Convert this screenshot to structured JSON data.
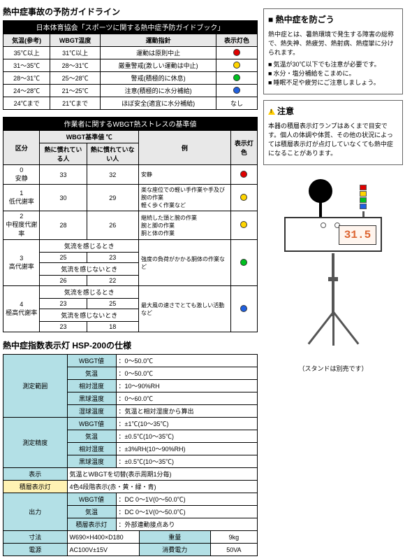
{
  "titles": {
    "main": "熱中症事故の予防ガイドライン",
    "sub1": "日本体育協会「スポーツに関する熱中症予防ガイドブック」",
    "sub2": "作業者に関するWBGT熱ストレスの基準値",
    "spec": "熱中症指数表示灯 HSP-200の仕様"
  },
  "t1": {
    "h": [
      "気温(参考)",
      "WBGT温度",
      "運動指針",
      "表示灯色"
    ],
    "rows": [
      {
        "c": [
          "35℃以上",
          "31℃以上",
          "運動は原則中止"
        ],
        "led": "#e00000"
      },
      {
        "c": [
          "31～35℃",
          "28～31℃",
          "厳重警戒(激しい運動は中止)"
        ],
        "led": "#ffd500"
      },
      {
        "c": [
          "28～31℃",
          "25～28℃",
          "警戒(積極的に休息)"
        ],
        "led": "#00c020"
      },
      {
        "c": [
          "24～28℃",
          "21～25℃",
          "注意(積極的に水分補給)"
        ],
        "led": "#2060e0"
      },
      {
        "c": [
          "24℃まで",
          "21℃まで",
          "ほぼ安全(適宜に水分補給)"
        ],
        "led": null,
        "ledtxt": "なし"
      }
    ]
  },
  "t2": {
    "h": {
      "kubun": "区分",
      "wbgt": "WBGT基準値 ℃",
      "a": "熱に慣れている人",
      "b": "熱に慣れていない人",
      "ex": "例",
      "led": "表示灯色"
    },
    "rows": [
      {
        "k": [
          "0",
          "安静"
        ],
        "a": "33",
        "b": "32",
        "ex": "安静",
        "led": "#e00000"
      },
      {
        "k": [
          "1",
          "低代謝率"
        ],
        "a": "30",
        "b": "29",
        "ex": "楽な座位での軽い手作業や手及び腕の作業\n軽く歩く作業など",
        "led": "#ffd500"
      },
      {
        "k": [
          "2",
          "中程度代謝率"
        ],
        "a": "28",
        "b": "26",
        "ex": "継続した頭と腕の作業\n腕と脚の作業\n胴と体の作業",
        "led": "#ffd500"
      },
      {
        "k": [
          "3",
          "高代謝率"
        ],
        "sub": [
          {
            "l": "気流を感じるとき",
            "a": "25",
            "b": "23"
          },
          {
            "l": "気流を感じないとき",
            "a": "26",
            "b": "22"
          }
        ],
        "ex": "強度の負荷がかかる胴体の作業など",
        "led": "#00c020"
      },
      {
        "k": [
          "4",
          "極高代謝率"
        ],
        "sub": [
          {
            "l": "気流を感じるとき",
            "a": "23",
            "b": "25"
          },
          {
            "l": "気流を感じないとき",
            "a": "23",
            "b": "18"
          }
        ],
        "ex": "最大風の速さでとても激しい活動など",
        "led": "#2060e0"
      }
    ]
  },
  "spec": {
    "groups": [
      {
        "h": "測定範囲",
        "rows": [
          [
            "WBGT値",
            "：0～50.0℃"
          ],
          [
            "気温",
            "：0～50.0℃"
          ],
          [
            "相対湿度",
            "：10～90%RH"
          ],
          [
            "黒球温度",
            "：0～60.0℃"
          ],
          [
            "湿球温度",
            "：気温と相対湿度から算出"
          ]
        ]
      },
      {
        "h": "測定精度",
        "rows": [
          [
            "WBGT値",
            "：±1℃(10～35℃)"
          ],
          [
            "気温",
            "：±0.5℃(10～35℃)"
          ],
          [
            "相対湿度",
            "：±3%RH(10～90%RH)"
          ],
          [
            "黒球温度",
            "：±0.5℃(10～35℃)"
          ]
        ]
      }
    ],
    "disp": [
      "表示",
      "気温とWBGTを切替(表示周期1分毎)"
    ],
    "warn": [
      "積層表示灯",
      "4色4段階表示(赤・黄・緑・青)"
    ],
    "out": {
      "h": "出力",
      "rows": [
        [
          "WBGT値",
          "：DC 0～1V(0～50.0℃)"
        ],
        [
          "気温",
          "：DC 0～1V(0～50.0℃)"
        ],
        [
          "積層表示灯",
          "：外部連動接点あり"
        ]
      ]
    },
    "dim": [
      "寸法",
      "W690×H400×D180",
      "重量",
      "9kg"
    ],
    "pow": [
      "電源",
      "AC100V±15V",
      "消費電力",
      "50VA"
    ]
  },
  "info1": {
    "title": "■ 熱中症を防ごう",
    "body": "熱中症とは、暑熱環境で発生する障害の総称で、熱失神、熱疲労、熱射病、熱痙攣に分けられます。",
    "bullets": [
      "気温が30℃以下でも注意が必要です。",
      "水分・塩分補給をこまめに。",
      "睡眠不足や疲労にご注意しましょう。"
    ]
  },
  "info2": {
    "title": "注意",
    "body": "本器の積層表示灯ランプはあくまで目安です。個人の体調や体質、その他の状況によっては積層表示灯が点灯していなくても熱中症になることがあります。"
  },
  "device": {
    "lcd": "31.5",
    "note": "（スタンドは別売です）",
    "leds": [
      "#e00000",
      "#ffd500",
      "#00c020",
      "#2060e0"
    ]
  }
}
